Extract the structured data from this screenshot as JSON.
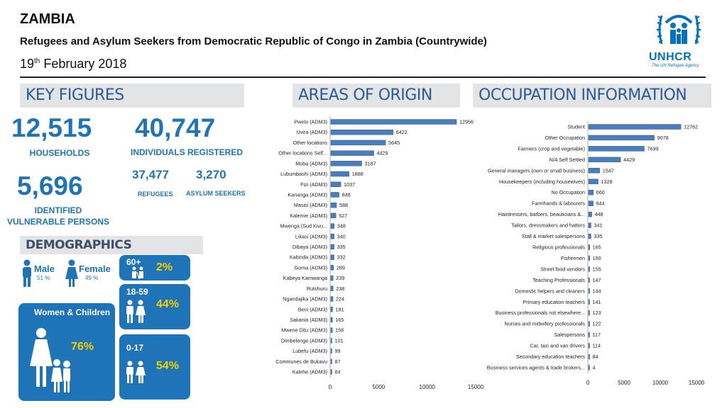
{
  "header": {
    "title": "ZAMBIA",
    "subtitle": "Refugees and Asylum Seekers from Democratic Republic of Congo in Zambia (Countrywide)",
    "date_day": "19",
    "date_sup": "th",
    "date_rest": " February 2018"
  },
  "logo": {
    "text": "UNHCR",
    "tagline": "The UN Refugee Agency"
  },
  "sections": {
    "key_figures": "KEY FIGURES",
    "areas_of_origin": "AREAS OF ORIGIN",
    "occupation": "OCCUPATION INFORMATION",
    "demographics": "DEMOGRAPHICS"
  },
  "key_figures": {
    "households": "12,515",
    "households_label": "HOUSEHOLDS",
    "individuals": "40,747",
    "individuals_label": "INDIVIDUALS REGISTERED",
    "refugees": "37,477",
    "refugees_label": "REFUGEES",
    "asylum": "3,270",
    "asylum_label": "ASYLUM SEEKERS",
    "vulnerable": "5,696",
    "vulnerable_label_1": "IDENTIFIED",
    "vulnerable_label_2": "VULNERABLE PERSONS"
  },
  "demographics": {
    "male_label": "Male",
    "male_pct": "51 %",
    "female_label": "Female",
    "female_pct": "49 %",
    "women_children_label": "Women & Children",
    "women_children_pct": "76%",
    "age_60_label": "60+",
    "age_60_pct": "2%",
    "age_18_label": "18-59",
    "age_18_pct": "44%",
    "age_0_label": "0-17",
    "age_0_pct": "54%"
  },
  "colors": {
    "accent": "#1f73b7",
    "yellow": "#f5d000",
    "bar": "#4a7ebb",
    "header_bg": "#e3e4e6"
  },
  "chart_data": [
    {
      "type": "bar",
      "orientation": "horizontal",
      "categories": [
        "Pweto (ADM3)",
        "Uvira (ADM3)",
        "Other locations",
        "Other locations Self...",
        "Moba (ADM3)",
        "Lubumbashi (ADM3)",
        "Fizi (ADM3)",
        "Kananga (ADM3)",
        "Masisi (ADM3)",
        "Kalemie (ADM3)",
        "Mwenga (Sud Kivu...",
        "Likasi (ADM3)",
        "Dibaya (ADM3)",
        "Kabinda (ADM3)",
        "Goma (ADM3)",
        "Kabeya Kamwanga",
        "Rutshuru",
        "Ngandajika (ADM3)",
        "Beni (ADM3)",
        "Sakania (ADM3)",
        "Mwene Ditu (ADM3)",
        "Dimbelenge (ADM3)",
        "Lubefu (ADM3)",
        "Communes de Bukavu",
        "Kalehe (ADM3)"
      ],
      "values": [
        12956,
        6422,
        5645,
        4429,
        3187,
        1888,
        1037,
        848,
        588,
        527,
        348,
        340,
        335,
        332,
        289,
        239,
        238,
        224,
        181,
        165,
        158,
        101,
        99,
        87,
        84
      ],
      "xticks": [
        "0",
        "5000",
        "10000",
        "15000"
      ],
      "xlim": [
        0,
        15000
      ]
    },
    {
      "type": "bar",
      "orientation": "horizontal",
      "categories": [
        "Student",
        "Other Occupation",
        "Farmers (crop and vegetable)",
        "N/A Self Settled",
        "General managers (own or small business)",
        "Housekeepers (including housewives)",
        "No Occupation",
        "Farmhands & labourers",
        "Hairdressers, barbers, beauticians &...",
        "Tailors, dressmakers and hatters",
        "Stall & market salespersons",
        "Religious professionals",
        "Fishermen",
        "Street food vendors",
        "Teaching Professionals",
        "Domestic helpers and cleaners",
        "Primary education teachers",
        "Business professionals not elsewhere...",
        "Nurses and midwifery professionals",
        "Salespersons",
        "Car, taxi and van drivers",
        "Secondary education teachers",
        "Business services agents & trade brokers..."
      ],
      "values": [
        12762,
        9078,
        7699,
        4429,
        1547,
        1328,
        660,
        644,
        448,
        341,
        335,
        165,
        160,
        155,
        147,
        144,
        141,
        123,
        122,
        117,
        114,
        84,
        4
      ],
      "xticks": [
        "0",
        "5000",
        "10000",
        "15000"
      ],
      "xlim": [
        0,
        15000
      ]
    }
  ]
}
